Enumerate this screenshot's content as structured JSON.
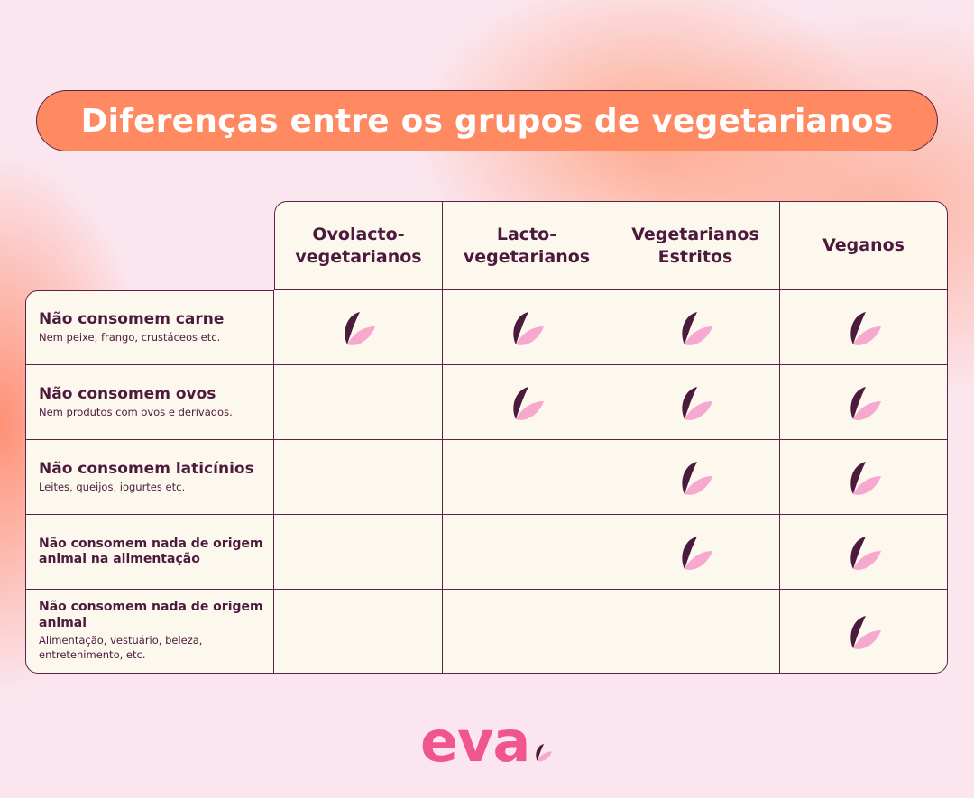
{
  "title": "Diferenças entre os grupos de vegetarianos",
  "columns": [
    "Ovolacto-\nvegetarianos",
    "Lacto-\nvegetarianos",
    "Vegetarianos\nEstritos",
    "Veganos"
  ],
  "rows": [
    {
      "title": "Não consomem carne",
      "subtitle": "Nem peixe, frango, crustáceos etc.",
      "marks": [
        true,
        true,
        true,
        true
      ]
    },
    {
      "title": "Não consomem ovos",
      "subtitle": "Nem produtos com ovos e derivados.",
      "marks": [
        false,
        true,
        true,
        true
      ]
    },
    {
      "title": "Não consomem laticínios",
      "subtitle": "Leites, queijos, iogurtes etc.",
      "marks": [
        false,
        false,
        true,
        true
      ]
    },
    {
      "title": "Não consomem nada de origem animal na alimentação",
      "subtitle": "",
      "marks": [
        false,
        false,
        true,
        true
      ]
    },
    {
      "title": "Não consomem nada de origem animal",
      "subtitle": "Alimentação, vestuário, beleza, entretenimento, etc.",
      "marks": [
        false,
        false,
        false,
        true
      ]
    }
  ],
  "icon": "leaf-icon",
  "colors": {
    "accent": "#ff8a62",
    "dark": "#4b1a3c",
    "pink": "#f7a8cf",
    "brand": "#f0568c",
    "cell": "#fdf8ee"
  },
  "logo": "eva"
}
